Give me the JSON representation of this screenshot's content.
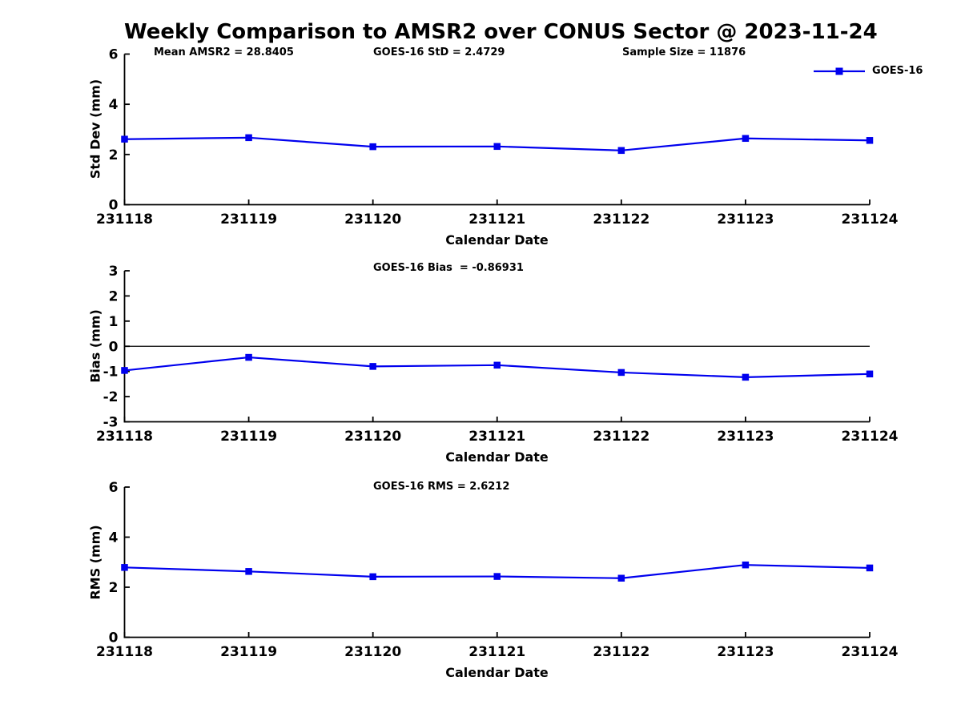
{
  "title": "Weekly Comparison to AMSR2 over CONUS Sector @ 2023-11-24",
  "colors": {
    "series": "#0000EE",
    "axis": "#000000",
    "text": "#000000",
    "background": "#FFFFFF"
  },
  "legend": {
    "label": "GOES-16"
  },
  "x_axis": {
    "label": "Calendar Date",
    "categories": [
      "231118",
      "231119",
      "231120",
      "231121",
      "231122",
      "231123",
      "231124"
    ]
  },
  "chart_data": [
    {
      "type": "line",
      "name": "std-dev",
      "ylabel": "Std Dev (mm)",
      "ylim": [
        0,
        6
      ],
      "yticks": [
        0,
        2,
        4,
        6
      ],
      "xlabel": "Calendar Date",
      "grid": false,
      "legend_position": "top-right",
      "categories": [
        "231118",
        "231119",
        "231120",
        "231121",
        "231122",
        "231123",
        "231124"
      ],
      "series": [
        {
          "name": "GOES-16",
          "values": [
            2.61,
            2.67,
            2.31,
            2.32,
            2.16,
            2.64,
            2.56
          ]
        }
      ],
      "annotations": [
        {
          "text": "Mean AMSR2 = 28.8405"
        },
        {
          "text": "GOES-16 StD = 2.4729"
        },
        {
          "text": "Sample Size = 11876"
        }
      ]
    },
    {
      "type": "line",
      "name": "bias",
      "ylabel": "Bias (mm)",
      "ylim": [
        -3,
        3
      ],
      "yticks": [
        3,
        2,
        1,
        0,
        -1,
        -2,
        -3
      ],
      "xlabel": "Calendar Date",
      "grid": false,
      "zero_line": true,
      "categories": [
        "231118",
        "231119",
        "231120",
        "231121",
        "231122",
        "231123",
        "231124"
      ],
      "series": [
        {
          "name": "GOES-16",
          "values": [
            -0.96,
            -0.44,
            -0.8,
            -0.75,
            -1.04,
            -1.23,
            -1.1
          ]
        }
      ],
      "annotations": [
        {
          "text": "GOES-16 Bias  = -0.86931"
        }
      ]
    },
    {
      "type": "line",
      "name": "rms",
      "ylabel": "RMS (mm)",
      "ylim": [
        0,
        6
      ],
      "yticks": [
        0,
        2,
        4,
        6
      ],
      "xlabel": "Calendar Date",
      "grid": false,
      "categories": [
        "231118",
        "231119",
        "231120",
        "231121",
        "231122",
        "231123",
        "231124"
      ],
      "series": [
        {
          "name": "GOES-16",
          "values": [
            2.79,
            2.63,
            2.42,
            2.43,
            2.36,
            2.89,
            2.77
          ]
        }
      ],
      "annotations": [
        {
          "text": "GOES-16 RMS = 2.6212"
        }
      ]
    }
  ]
}
